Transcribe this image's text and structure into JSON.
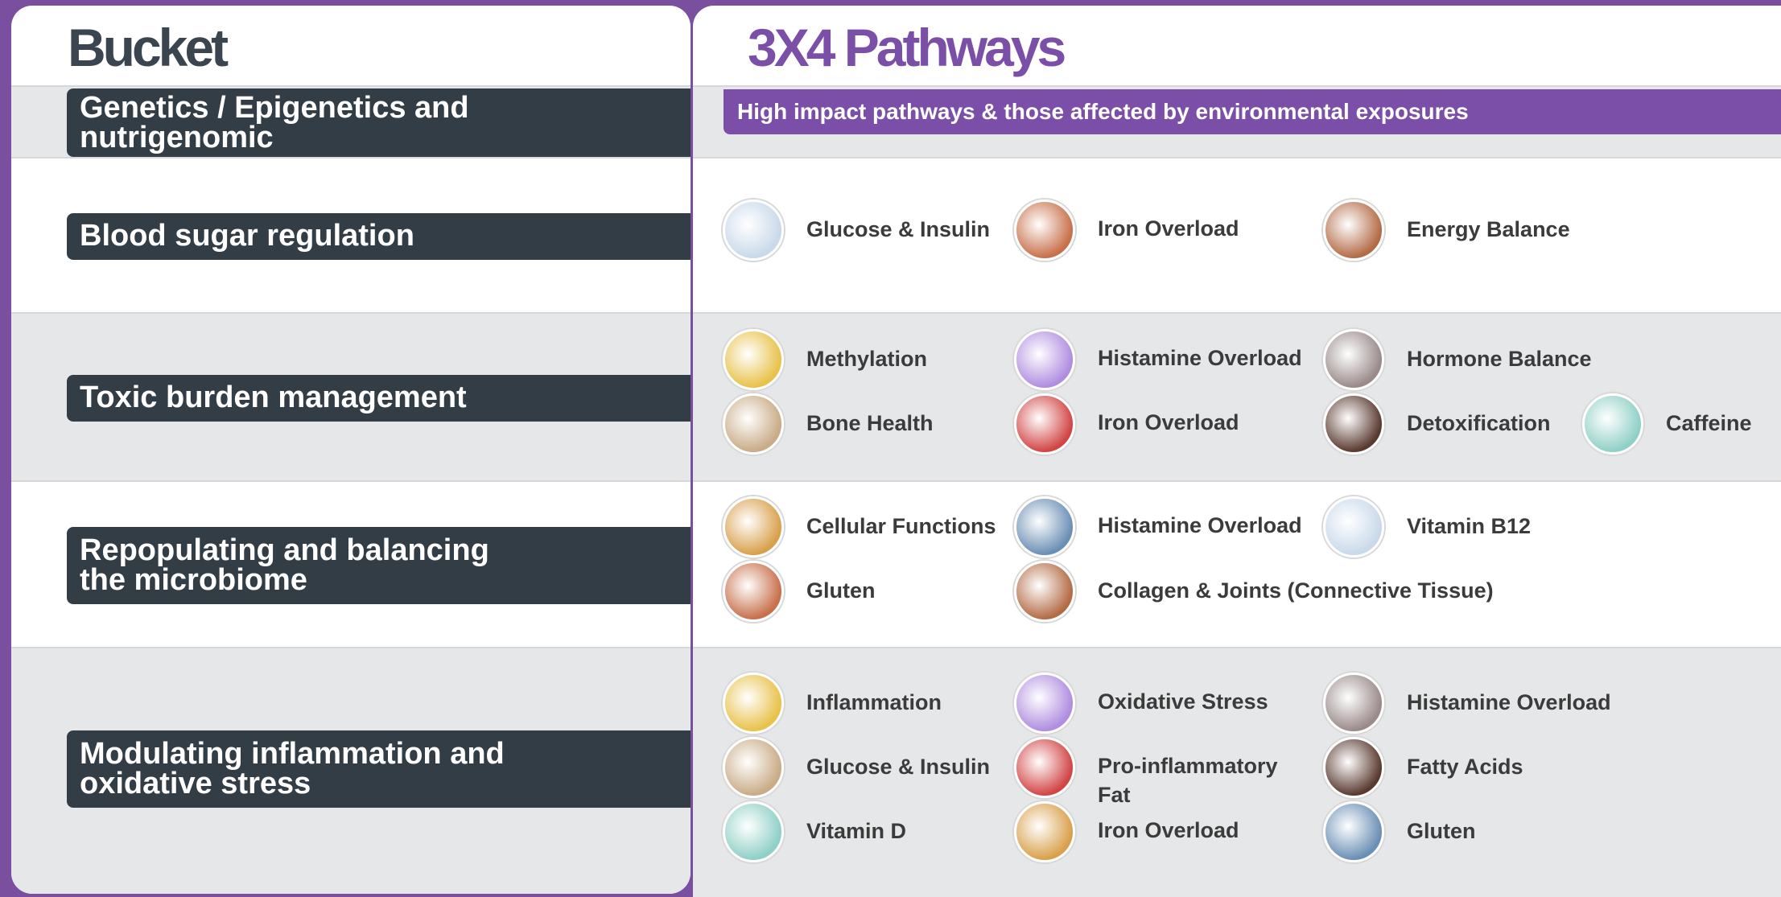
{
  "header": {
    "bucket": "Bucket",
    "pathways": "3X4 Pathways"
  },
  "rows": [
    {
      "bucket": "Genetics / Epigenetics and nutrigenomic",
      "banner": "High impact pathways & those affected by environmental exposures"
    },
    {
      "bucket": "Blood sugar regulation",
      "pathways": [
        [
          "Glucose & Insulin",
          "Iron Overload",
          "Energy Balance"
        ]
      ]
    },
    {
      "bucket": "Toxic burden management",
      "pathways": [
        [
          "Methylation",
          "Histamine Overload",
          "Hormone Balance"
        ],
        [
          "Bone Health",
          "Iron Overload",
          "Detoxification",
          "Caffeine"
        ]
      ]
    },
    {
      "bucket": "Repopulating and balancing the microbiome",
      "pathways": [
        [
          "Cellular Functions",
          "Histamine Overload",
          "Vitamin B12"
        ],
        [
          "Gluten",
          "Collagen & Joints (Connective Tissue)"
        ]
      ]
    },
    {
      "bucket": "Modulating inflammation and oxidative stress",
      "pathways": [
        [
          "Inflammation",
          "Oxidative Stress",
          "Histamine Overload"
        ],
        [
          "Glucose & Insulin",
          "Pro-inflammatory Fat",
          "Fatty Acids"
        ],
        [
          "Vitamin D",
          "Iron Overload",
          "Gluten"
        ]
      ]
    }
  ]
}
